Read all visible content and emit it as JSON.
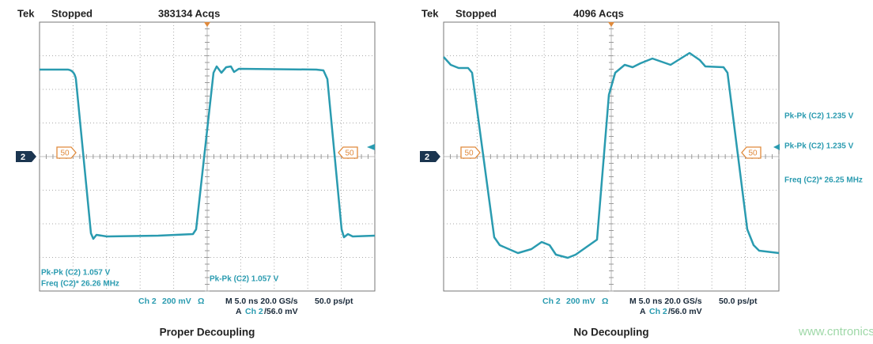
{
  "panels": [
    {
      "header": {
        "brand": "Tek",
        "status": "Stopped",
        "acquisitions": "383134 Acqs"
      },
      "channel_marker": "2",
      "level_markers": [
        "50",
        "50"
      ],
      "measurements": [
        "Pk-Pk (C2) 1.057 V",
        "Freq (C2)* 26.26 MHz",
        "Pk-Pk (C2) 1.057 V"
      ],
      "footer": {
        "channel": "Ch 2",
        "scale": "200 mV",
        "impedance": "Ω",
        "timebase": "M 5.0 ns 20.0 GS/s",
        "resolution": "50.0 ps/pt",
        "trigger_prefix": "A",
        "trigger_channel": "Ch 2",
        "trigger_level": "/56.0 mV"
      },
      "caption": "Proper Decoupling"
    },
    {
      "header": {
        "brand": "Tek",
        "status": "Stopped",
        "acquisitions": "4096 Acqs"
      },
      "channel_marker": "2",
      "level_markers": [
        "50",
        "50"
      ],
      "measurements": [
        "Pk-Pk (C2)  1.235 V",
        "Pk-Pk (C2)  1.235 V",
        "Freq (C2)*  26.25 MHz"
      ],
      "footer": {
        "channel": "Ch 2",
        "scale": "200 mV",
        "impedance": "Ω",
        "timebase": "M 5.0 ns 20.0 GS/s",
        "resolution": "50.0 ps/pt",
        "trigger_prefix": "A",
        "trigger_channel": "Ch 2",
        "trigger_level": "/56.0 mV"
      },
      "caption": "No Decoupling"
    }
  ],
  "watermark": "www.cntronics.com"
}
